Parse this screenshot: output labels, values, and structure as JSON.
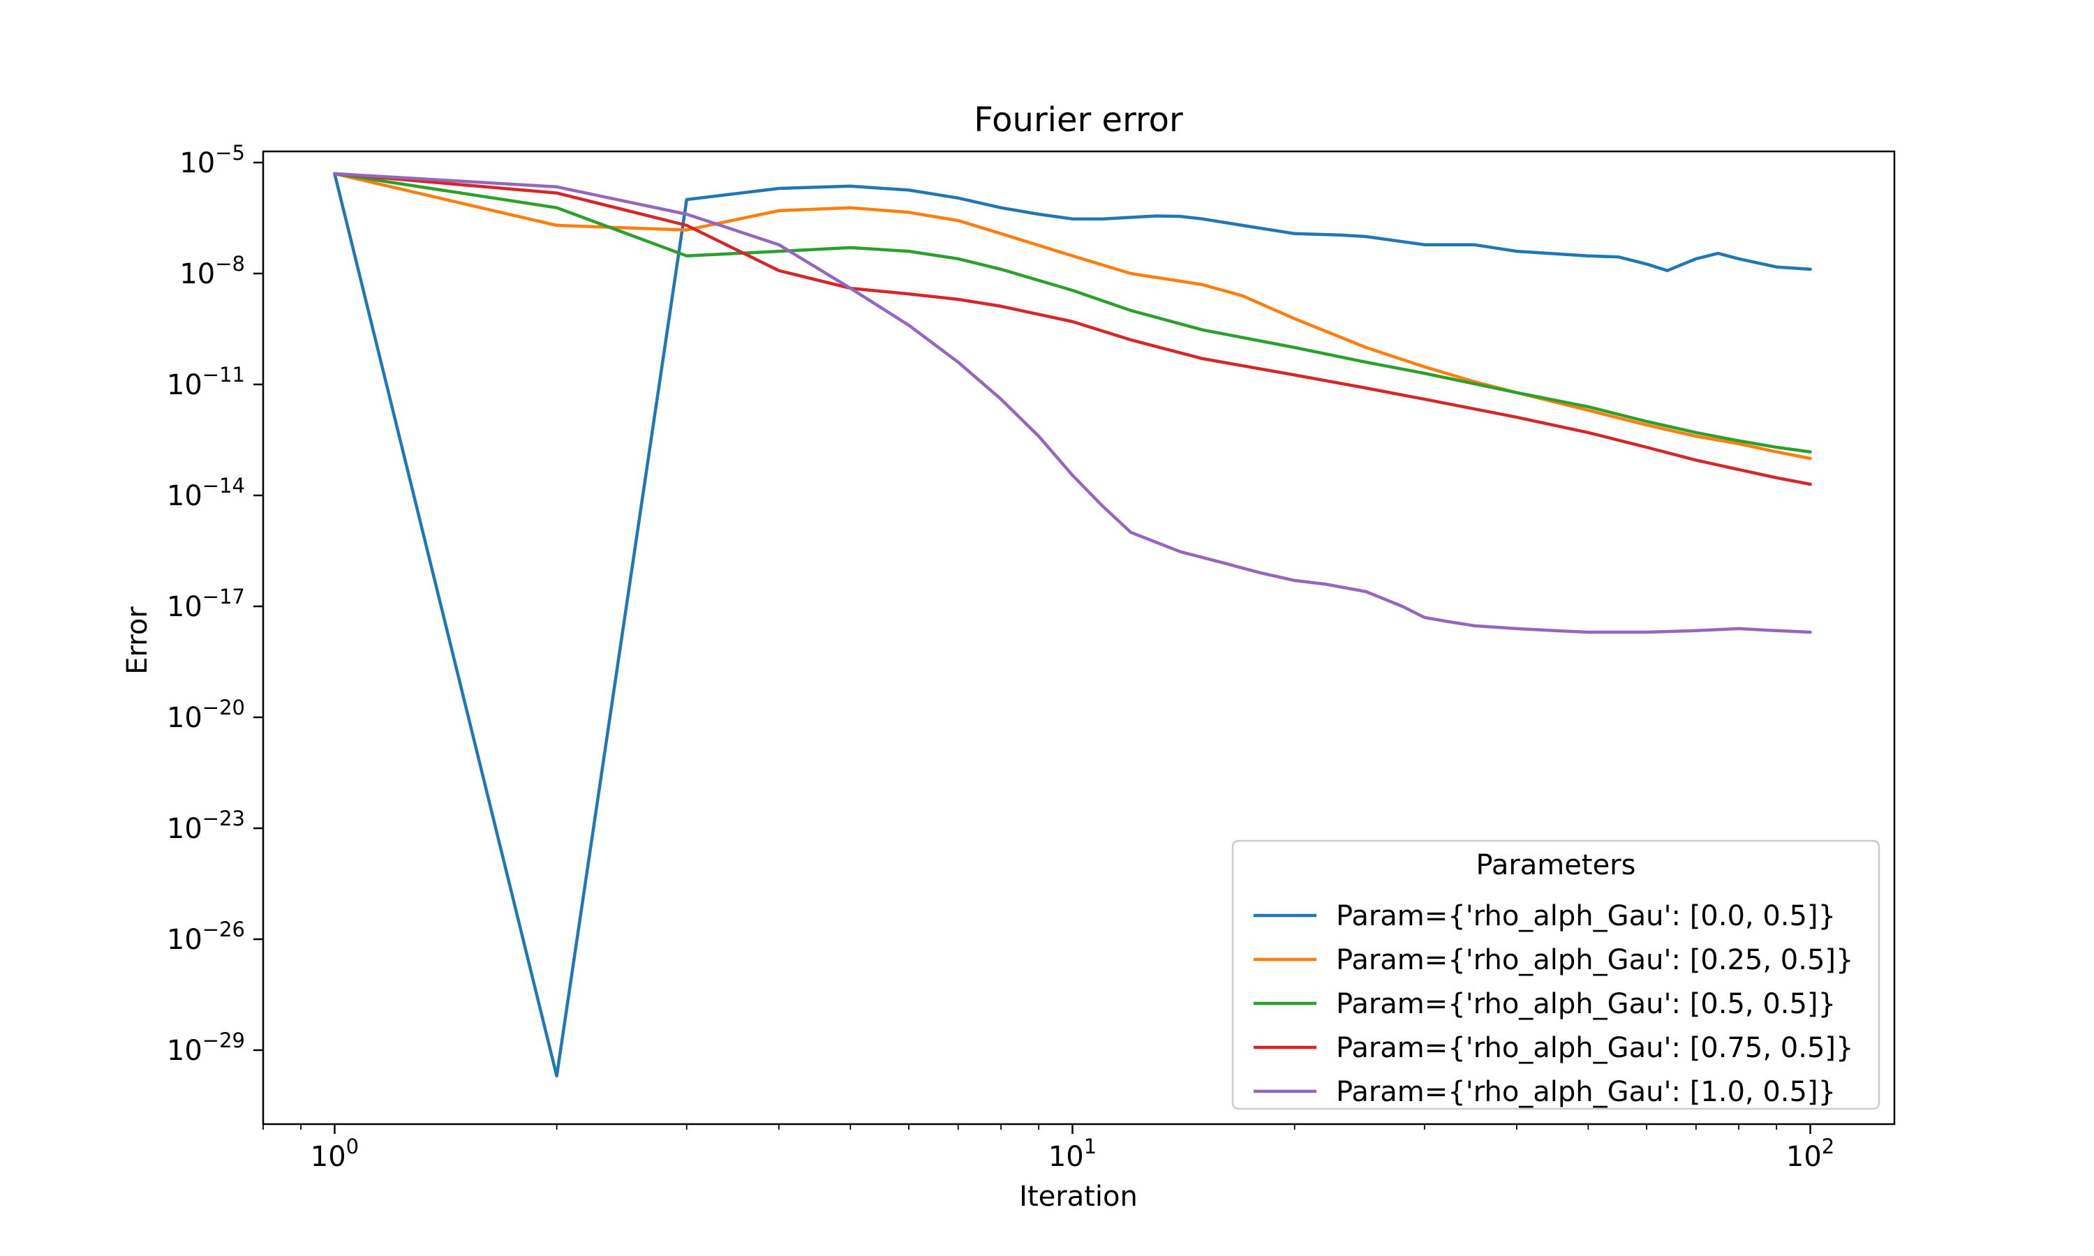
{
  "chart_data": {
    "type": "line",
    "title": "Fourier error",
    "xlabel": "Iteration",
    "ylabel": "Error",
    "xscale": "log",
    "yscale": "log",
    "xlim": [
      0.8,
      130
    ],
    "ylim": [
      1e-31,
      2e-05
    ],
    "xticks": [
      {
        "value": 1,
        "label": "10^0"
      },
      {
        "value": 10,
        "label": "10^1"
      },
      {
        "value": 100,
        "label": "10^2"
      }
    ],
    "yticks": [
      {
        "value": 1e-05,
        "label": "10^-5"
      },
      {
        "value": 1e-08,
        "label": "10^-8"
      },
      {
        "value": 1e-11,
        "label": "10^-11"
      },
      {
        "value": 1e-14,
        "label": "10^-14"
      },
      {
        "value": 1e-17,
        "label": "10^-17"
      },
      {
        "value": 1e-20,
        "label": "10^-20"
      },
      {
        "value": 1e-23,
        "label": "10^-23"
      },
      {
        "value": 1e-26,
        "label": "10^-26"
      },
      {
        "value": 1e-29,
        "label": "10^-29"
      }
    ],
    "grid": false,
    "legend": {
      "title": "Parameters",
      "placement": "lower right"
    },
    "series": [
      {
        "name": "Param={'rho_alph_Gau': [0.0, 0.5]}",
        "color": "#1f77b4",
        "x": [
          1,
          2,
          3,
          4,
          5,
          6,
          7,
          8,
          9,
          10,
          11,
          12,
          13,
          14,
          15,
          17,
          20,
          23,
          25,
          30,
          35,
          40,
          50,
          55,
          60,
          64,
          70,
          75,
          80,
          90,
          100
        ],
        "y": [
          5e-06,
          2e-30,
          1e-06,
          2e-06,
          2.3e-06,
          1.8e-06,
          1.1e-06,
          6e-07,
          4e-07,
          3e-07,
          3e-07,
          3.3e-07,
          3.6e-07,
          3.5e-07,
          3e-07,
          2e-07,
          1.2e-07,
          1.1e-07,
          1e-07,
          6e-08,
          6e-08,
          4e-08,
          3e-08,
          2.8e-08,
          1.8e-08,
          1.2e-08,
          2.5e-08,
          3.5e-08,
          2.5e-08,
          1.5e-08,
          1.3e-08
        ]
      },
      {
        "name": "Param={'rho_alph_Gau': [0.25, 0.5]}",
        "color": "#ff7f0e",
        "x": [
          1,
          2,
          3,
          4,
          5,
          6,
          7,
          8,
          10,
          12,
          15,
          17,
          20,
          25,
          30,
          35,
          40,
          50,
          60,
          70,
          80,
          90,
          100
        ],
        "y": [
          5e-06,
          2e-07,
          1.5e-07,
          5e-07,
          6e-07,
          4.5e-07,
          2.7e-07,
          1.2e-07,
          3e-08,
          1e-08,
          5e-09,
          2.5e-09,
          6e-10,
          1e-10,
          3e-11,
          1.2e-11,
          6e-12,
          2e-12,
          8e-13,
          4e-13,
          2.5e-13,
          1.5e-13,
          1e-13
        ]
      },
      {
        "name": "Param={'rho_alph_Gau': [0.5, 0.5]}",
        "color": "#2ca02c",
        "x": [
          1,
          2,
          3,
          4,
          5,
          6,
          7,
          8,
          10,
          12,
          15,
          20,
          25,
          30,
          40,
          50,
          60,
          70,
          80,
          90,
          100
        ],
        "y": [
          5e-06,
          6e-07,
          3e-08,
          4e-08,
          5e-08,
          4e-08,
          2.5e-08,
          1.3e-08,
          3.5e-09,
          1e-09,
          3e-10,
          1e-10,
          4e-11,
          2e-11,
          6e-12,
          2.5e-12,
          1e-12,
          5e-13,
          3e-13,
          2e-13,
          1.5e-13
        ]
      },
      {
        "name": "Param={'rho_alph_Gau': [0.75, 0.5]}",
        "color": "#d62728",
        "x": [
          1,
          2,
          3,
          4,
          5,
          6,
          7,
          8,
          10,
          12,
          15,
          20,
          25,
          30,
          40,
          50,
          60,
          70,
          80,
          90,
          100
        ],
        "y": [
          5e-06,
          1.5e-06,
          2e-07,
          1.2e-08,
          4e-09,
          2.8e-09,
          2e-09,
          1.3e-09,
          5e-10,
          1.6e-10,
          5e-11,
          1.8e-11,
          8e-12,
          4e-12,
          1.3e-12,
          5e-13,
          2e-13,
          9e-14,
          5e-14,
          3e-14,
          2e-14
        ]
      },
      {
        "name": "Param={'rho_alph_Gau': [1.0, 0.5]}",
        "color": "#9467bd",
        "x": [
          1,
          2,
          3,
          4,
          5,
          6,
          7,
          8,
          9,
          10,
          11,
          12,
          14,
          16,
          18,
          20,
          22,
          25,
          28,
          30,
          32,
          35,
          40,
          45,
          50,
          60,
          70,
          80,
          90,
          100
        ],
        "y": [
          5e-06,
          2.2e-06,
          4e-07,
          6e-08,
          4e-09,
          4e-10,
          4e-11,
          4e-12,
          4e-13,
          3.5e-14,
          5e-15,
          1e-15,
          3e-16,
          1.5e-16,
          8e-17,
          5e-17,
          4e-17,
          2.5e-17,
          1e-17,
          5e-18,
          4e-18,
          3e-18,
          2.5e-18,
          2.2e-18,
          2e-18,
          2e-18,
          2.2e-18,
          2.5e-18,
          2.2e-18,
          2e-18
        ]
      }
    ]
  }
}
